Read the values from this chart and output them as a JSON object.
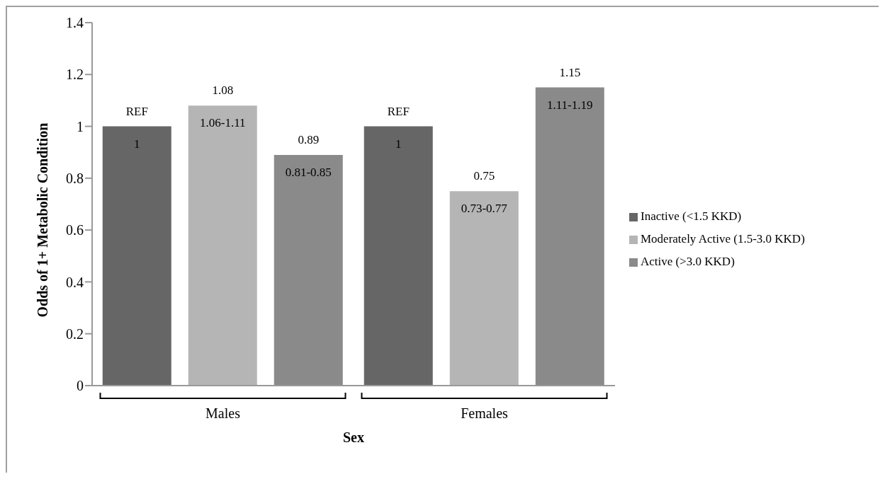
{
  "chart_data": {
    "type": "bar",
    "xlabel": "Sex",
    "ylabel": "Odds of 1+ Metabolic Condition",
    "categories": [
      "Males",
      "Females"
    ],
    "series": [
      {
        "name": "Inactive (<1.5 KKD)",
        "color": "#666666",
        "values": [
          1,
          1
        ],
        "value_labels": [
          "REF",
          "REF"
        ]
      },
      {
        "name": "Moderately Active (1.5-3.0 KKD)",
        "color": "#b5b5b5",
        "values": [
          1.08,
          0.75
        ],
        "value_labels": [
          "1.08",
          "0.75"
        ]
      },
      {
        "name": "Active (>3.0 KKD)",
        "color": "#8a8a8a",
        "values": [
          0.89,
          1.15
        ],
        "value_labels": [
          "0.89",
          "1.15"
        ]
      }
    ],
    "annotations": [
      "1",
      "1",
      "1.06-1.11",
      "0.73-0.77",
      "0.81-0.85",
      "1.11-1.19"
    ],
    "ylim": [
      0,
      1.4
    ],
    "yticks": [
      0,
      0.2,
      0.4,
      0.6,
      0.8,
      1,
      1.2,
      1.4
    ],
    "grid": false,
    "legend": "right"
  }
}
